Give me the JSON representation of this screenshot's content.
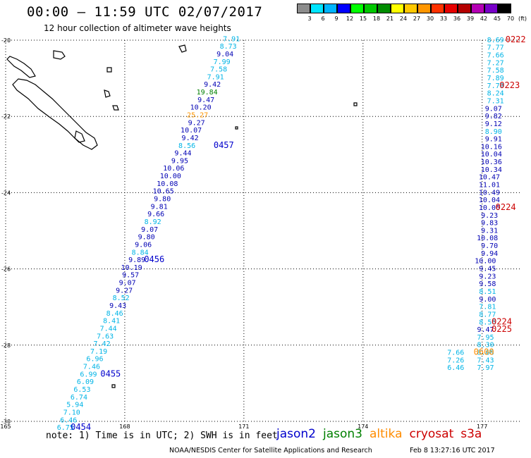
{
  "header": {
    "title": "00:00 — 11:59 UTC 02/07/2017",
    "subtitle": "12 hour collection of altimeter wave heights"
  },
  "colorbar": {
    "unit": "(ft)",
    "labels": [
      "3",
      "6",
      "9",
      "12",
      "15",
      "18",
      "21",
      "24",
      "27",
      "30",
      "33",
      "36",
      "39",
      "42",
      "45",
      "70"
    ],
    "colors": [
      "#8c8c8c",
      "#00e5ff",
      "#00b4ff",
      "#0000ff",
      "#00ff00",
      "#00c800",
      "#008c00",
      "#ffff00",
      "#ffc800",
      "#ff9600",
      "#ff3200",
      "#e60000",
      "#b40000",
      "#b400b4",
      "#7800c8",
      "#000000"
    ]
  },
  "chart_data": {
    "type": "scatter",
    "x_range": [
      165,
      178
    ],
    "y_range": [
      -30,
      -20
    ],
    "x_ticks": [
      "165",
      "168",
      "171",
      "174",
      "177"
    ],
    "y_ticks": [
      "-20",
      "-22",
      "-24",
      "-26",
      "-28",
      "-30"
    ],
    "grid": true,
    "series": [
      {
        "name": "jason2",
        "color": "#0000cc"
      },
      {
        "name": "jason3",
        "color": "#008000"
      },
      {
        "name": "altika",
        "color": "#ff8c00"
      },
      {
        "name": "cryosat",
        "color": "#cc0000"
      },
      {
        "name": "s3a",
        "color": "#cc0000"
      }
    ],
    "swh_color_scale": {
      "thresholds": [
        9,
        12,
        15,
        18,
        21,
        24,
        27,
        30
      ],
      "colors": [
        "#00b4e6",
        "#0000b4",
        "#00c800",
        "#008c00",
        "#008000",
        "#d4c800",
        "#ff9600",
        "#ff6400"
      ]
    },
    "tracks": [
      {
        "satellite": "jason2",
        "points": [
          {
            "x": 170.9,
            "y": -19.95,
            "swh": "7.91"
          },
          {
            "x": 170.82,
            "y": -20.15,
            "swh": "8.73"
          },
          {
            "x": 170.74,
            "y": -20.35,
            "swh": "9.04"
          },
          {
            "x": 170.66,
            "y": -20.55,
            "swh": "7.99"
          },
          {
            "x": 170.58,
            "y": -20.75,
            "swh": "7.58"
          },
          {
            "x": 170.5,
            "y": -20.95,
            "swh": "7.91"
          },
          {
            "x": 170.42,
            "y": -21.15,
            "swh": "9.42"
          },
          {
            "x": 170.34,
            "y": -21.35,
            "swh": "19.84"
          },
          {
            "x": 170.26,
            "y": -21.55,
            "swh": "9.47"
          },
          {
            "x": 170.18,
            "y": -21.75,
            "swh": "10.20"
          },
          {
            "x": 170.1,
            "y": -21.95,
            "swh": "25.27"
          },
          {
            "x": 170.02,
            "y": -22.15,
            "swh": "9.27"
          },
          {
            "x": 169.94,
            "y": -22.35,
            "swh": "10.07"
          },
          {
            "x": 169.86,
            "y": -22.55,
            "swh": "9.42"
          },
          {
            "x": 169.78,
            "y": -22.75,
            "swh": "8.56"
          },
          {
            "x": 169.68,
            "y": -22.95,
            "swh": "9.44"
          },
          {
            "x": 169.6,
            "y": -23.15,
            "swh": "9.95"
          },
          {
            "x": 169.5,
            "y": -23.35,
            "swh": "10.06"
          },
          {
            "x": 169.42,
            "y": -23.55,
            "swh": "10.00"
          },
          {
            "x": 169.34,
            "y": -23.75,
            "swh": "10.08"
          },
          {
            "x": 169.24,
            "y": -23.95,
            "swh": "10.65"
          },
          {
            "x": 169.16,
            "y": -24.15,
            "swh": "9.80"
          },
          {
            "x": 169.08,
            "y": -24.35,
            "swh": "9.81"
          },
          {
            "x": 169.0,
            "y": -24.55,
            "swh": "9.66"
          },
          {
            "x": 168.92,
            "y": -24.75,
            "swh": "8.92"
          },
          {
            "x": 168.84,
            "y": -24.95,
            "swh": "9.07"
          },
          {
            "x": 168.76,
            "y": -25.15,
            "swh": "9.80"
          },
          {
            "x": 168.68,
            "y": -25.35,
            "swh": "9.06"
          },
          {
            "x": 168.6,
            "y": -25.55,
            "swh": "8.84"
          },
          {
            "x": 168.52,
            "y": -25.75,
            "swh": "9.89"
          },
          {
            "x": 168.44,
            "y": -25.95,
            "swh": "10.19"
          },
          {
            "x": 168.36,
            "y": -26.15,
            "swh": "9.57"
          },
          {
            "x": 168.28,
            "y": -26.35,
            "swh": "9.07"
          },
          {
            "x": 168.2,
            "y": -26.55,
            "swh": "9.27"
          },
          {
            "x": 168.12,
            "y": -26.75,
            "swh": "8.52"
          },
          {
            "x": 168.04,
            "y": -26.95,
            "swh": "9.43"
          },
          {
            "x": 167.96,
            "y": -27.15,
            "swh": "8.46"
          },
          {
            "x": 167.88,
            "y": -27.35,
            "swh": "8.41"
          },
          {
            "x": 167.8,
            "y": -27.55,
            "swh": "7.44"
          },
          {
            "x": 167.72,
            "y": -27.75,
            "swh": "7.63"
          },
          {
            "x": 167.64,
            "y": -27.95,
            "swh": "7.42"
          },
          {
            "x": 167.56,
            "y": -28.15,
            "swh": "7.19"
          },
          {
            "x": 167.46,
            "y": -28.35,
            "swh": "6.96"
          },
          {
            "x": 167.38,
            "y": -28.55,
            "swh": "7.46"
          },
          {
            "x": 167.3,
            "y": -28.75,
            "swh": "6.99"
          },
          {
            "x": 167.22,
            "y": -28.95,
            "swh": "6.09"
          },
          {
            "x": 167.14,
            "y": -29.15,
            "swh": "6.53"
          },
          {
            "x": 167.06,
            "y": -29.35,
            "swh": "6.74"
          },
          {
            "x": 166.96,
            "y": -29.55,
            "swh": "5.94"
          },
          {
            "x": 166.88,
            "y": -29.75,
            "swh": "7.10"
          },
          {
            "x": 166.8,
            "y": -29.95,
            "swh": "6.46"
          },
          {
            "x": 166.72,
            "y": -30.15,
            "swh": "6.75"
          }
        ],
        "time_labels": [
          {
            "x": 170.75,
            "y": -22.75,
            "text": "0457"
          },
          {
            "x": 169.0,
            "y": -25.75,
            "text": "0456"
          },
          {
            "x": 167.9,
            "y": -28.75,
            "text": "0455"
          },
          {
            "x": 167.15,
            "y": -30.15,
            "text": "0454"
          }
        ]
      },
      {
        "satellite": "cryosat",
        "points": [
          {
            "x": 177.55,
            "y": -19.98,
            "swh": "8.69"
          },
          {
            "x": 177.55,
            "y": -20.18,
            "swh": "7.77"
          },
          {
            "x": 177.55,
            "y": -20.38,
            "swh": "7.66"
          },
          {
            "x": 177.55,
            "y": -20.58,
            "swh": "7.27"
          },
          {
            "x": 177.55,
            "y": -20.78,
            "swh": "7.58"
          },
          {
            "x": 177.55,
            "y": -20.98,
            "swh": "7.89"
          },
          {
            "x": 177.55,
            "y": -21.18,
            "swh": "7.79"
          },
          {
            "x": 177.55,
            "y": -21.38,
            "swh": "8.24"
          },
          {
            "x": 177.55,
            "y": -21.58,
            "swh": "7.31"
          },
          {
            "x": 177.5,
            "y": -21.78,
            "swh": "9.07"
          },
          {
            "x": 177.5,
            "y": -21.98,
            "swh": "9.82"
          },
          {
            "x": 177.5,
            "y": -22.18,
            "swh": "9.12"
          },
          {
            "x": 177.5,
            "y": -22.38,
            "swh": "8.90"
          },
          {
            "x": 177.5,
            "y": -22.58,
            "swh": "9.91"
          },
          {
            "x": 177.5,
            "y": -22.78,
            "swh": "10.16"
          },
          {
            "x": 177.5,
            "y": -22.98,
            "swh": "10.04"
          },
          {
            "x": 177.5,
            "y": -23.18,
            "swh": "10.36"
          },
          {
            "x": 177.5,
            "y": -23.38,
            "swh": "10.34"
          },
          {
            "x": 177.45,
            "y": -23.58,
            "swh": "10.47"
          },
          {
            "x": 177.45,
            "y": -23.78,
            "swh": "11.01"
          },
          {
            "x": 177.45,
            "y": -23.98,
            "swh": "10.49"
          },
          {
            "x": 177.45,
            "y": -24.18,
            "swh": "10.04"
          },
          {
            "x": 177.45,
            "y": -24.38,
            "swh": "10.06"
          },
          {
            "x": 177.4,
            "y": -24.58,
            "swh": "9.23"
          },
          {
            "x": 177.4,
            "y": -24.78,
            "swh": "9.83"
          },
          {
            "x": 177.4,
            "y": -24.98,
            "swh": "9.31"
          },
          {
            "x": 177.4,
            "y": -25.18,
            "swh": "10.08"
          },
          {
            "x": 177.4,
            "y": -25.38,
            "swh": "9.70"
          },
          {
            "x": 177.4,
            "y": -25.58,
            "swh": "9.94"
          },
          {
            "x": 177.35,
            "y": -25.78,
            "swh": "10.00"
          },
          {
            "x": 177.35,
            "y": -25.98,
            "swh": "9.45"
          },
          {
            "x": 177.35,
            "y": -26.18,
            "swh": "9.23"
          },
          {
            "x": 177.35,
            "y": -26.38,
            "swh": "9.58"
          },
          {
            "x": 177.35,
            "y": -26.58,
            "swh": "8.51"
          },
          {
            "x": 177.35,
            "y": -26.78,
            "swh": "9.00"
          },
          {
            "x": 177.35,
            "y": -26.98,
            "swh": "7.81"
          },
          {
            "x": 177.35,
            "y": -27.18,
            "swh": "8.77"
          },
          {
            "x": 177.35,
            "y": -27.38,
            "swh": "8.56"
          },
          {
            "x": 177.3,
            "y": -27.58,
            "swh": "9.47"
          },
          {
            "x": 177.3,
            "y": -27.78,
            "swh": "7.95"
          },
          {
            "x": 177.3,
            "y": -27.98,
            "swh": "8.30"
          },
          {
            "x": 177.3,
            "y": -28.18,
            "swh": "8.68"
          },
          {
            "x": 177.3,
            "y": -28.38,
            "swh": "7.43"
          },
          {
            "x": 177.3,
            "y": -28.58,
            "swh": "7.97"
          }
        ],
        "time_labels": [
          {
            "x": 178.1,
            "y": -19.98,
            "text": "0222"
          },
          {
            "x": 177.95,
            "y": -21.18,
            "text": "0223"
          },
          {
            "x": 177.85,
            "y": -24.38,
            "text": "0224"
          },
          {
            "x": 177.75,
            "y": -27.38,
            "text": "0224"
          },
          {
            "x": 177.75,
            "y": -27.58,
            "text": "0225"
          }
        ]
      },
      {
        "satellite": "altika",
        "points": [
          {
            "x": 176.55,
            "y": -28.18,
            "swh": "7.66"
          },
          {
            "x": 176.55,
            "y": -28.38,
            "swh": "7.26"
          },
          {
            "x": 176.55,
            "y": -28.58,
            "swh": "6.46"
          }
        ],
        "time_labels": [
          {
            "x": 177.3,
            "y": -28.18,
            "text": "0600"
          }
        ]
      }
    ]
  },
  "footer": {
    "note": "note: 1) Time is in UTC; 2) SWH is in feet",
    "legend": [
      {
        "label": "jason2",
        "color": "#0000cc"
      },
      {
        "label": "jason3",
        "color": "#008000"
      },
      {
        "label": "altika",
        "color": "#ff8c00"
      },
      {
        "label": "cryosat",
        "color": "#cc0000"
      },
      {
        "label": "s3a",
        "color": "#cc0000"
      }
    ],
    "credit": "NOAA/NESDIS Center for Satellite Applications and Research",
    "stamp": "Feb  8 13:27:16 UTC 2017"
  }
}
